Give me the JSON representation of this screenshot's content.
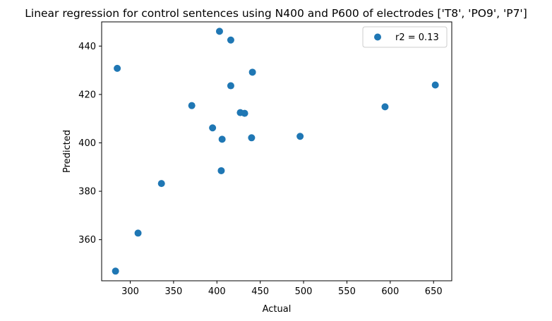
{
  "chart_data": {
    "type": "scatter",
    "title": "Linear regression for control sentences using N400 and P600 of electrodes ['T8', 'PO9', 'P7']",
    "xlabel": "Actual",
    "ylabel": "Predicted",
    "xlim": [
      267,
      671
    ],
    "ylim": [
      343,
      450
    ],
    "xticks": [
      300,
      350,
      400,
      450,
      500,
      550,
      600,
      650
    ],
    "yticks": [
      360,
      380,
      400,
      420,
      440
    ],
    "grid": false,
    "legend_position": "top-right",
    "series": [
      {
        "name": "r2 = 0.13",
        "color": "#1f77b4",
        "points": [
          {
            "x": 283,
            "y": 347.0
          },
          {
            "x": 285,
            "y": 430.8
          },
          {
            "x": 309,
            "y": 362.7
          },
          {
            "x": 336,
            "y": 383.2
          },
          {
            "x": 371,
            "y": 415.4
          },
          {
            "x": 395,
            "y": 406.2
          },
          {
            "x": 403,
            "y": 446.1
          },
          {
            "x": 405,
            "y": 388.5
          },
          {
            "x": 406,
            "y": 401.5
          },
          {
            "x": 416,
            "y": 442.5
          },
          {
            "x": 416,
            "y": 423.6
          },
          {
            "x": 427,
            "y": 412.5
          },
          {
            "x": 432,
            "y": 412.2
          },
          {
            "x": 440,
            "y": 402.1
          },
          {
            "x": 441,
            "y": 429.2
          },
          {
            "x": 496,
            "y": 402.7
          },
          {
            "x": 594,
            "y": 414.9
          },
          {
            "x": 652,
            "y": 423.9
          }
        ]
      }
    ]
  }
}
